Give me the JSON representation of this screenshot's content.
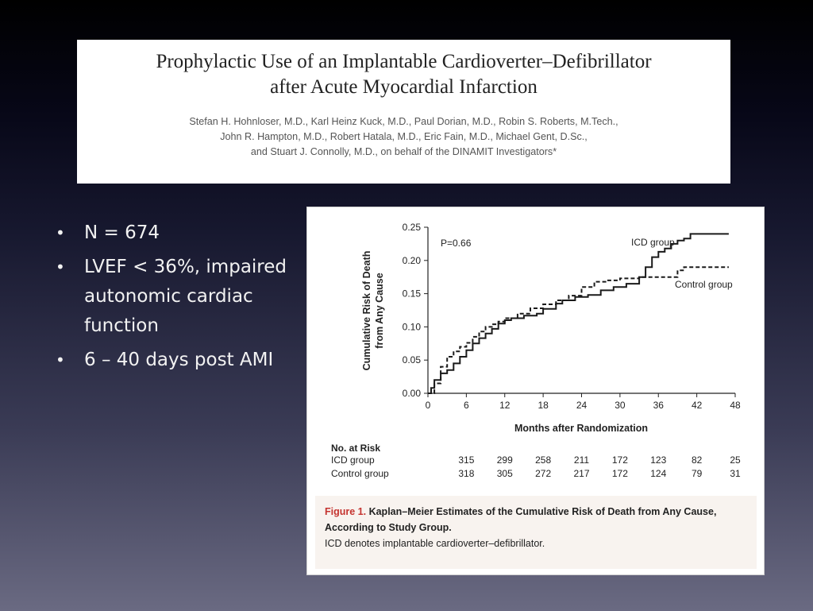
{
  "paper": {
    "title_line1": "Prophylactic Use of an Implantable Cardioverter–Defibrillator",
    "title_line2": "after Acute Myocardial Infarction",
    "authors_line1": "Stefan H. Hohnloser, M.D., Karl Heinz Kuck, M.D., Paul Dorian, M.D., Robin S. Roberts, M.Tech.,",
    "authors_line2": "John R. Hampton, M.D., Robert Hatala, M.D., Eric Fain, M.D., Michael Gent, D.Sc.,",
    "authors_line3": "and Stuart J. Connolly, M.D., on behalf of the DINAMIT Investigators*"
  },
  "bullets": {
    "symbol": "•",
    "items": [
      "N = 674",
      "LVEF < 36%, impaired autonomic cardiac function",
      "6 – 40 days post AMI"
    ]
  },
  "figure": {
    "p_value": "P=0.66",
    "risk_table": {
      "title": "No. at Risk",
      "rows": [
        {
          "label": "ICD group",
          "values": [
            "315",
            "299",
            "258",
            "211",
            "172",
            "123",
            "82",
            "25"
          ]
        },
        {
          "label": "Control group",
          "values": [
            "318",
            "305",
            "272",
            "217",
            "172",
            "124",
            "79",
            "31"
          ]
        }
      ]
    },
    "caption": {
      "label": "Figure 1.",
      "title": "Kaplan–Meier Estimates of the Cumulative Risk of Death from Any Cause, According to Study Group.",
      "note": "ICD denotes implantable cardioverter–defibrillator."
    }
  },
  "colors": {
    "accent": "#c4332f",
    "caption_bg": "#f8f3ef"
  },
  "chart_data": {
    "type": "line",
    "title": "",
    "xlabel": "Months after Randomization",
    "ylabel_line1": "Cumulative Risk of Death",
    "ylabel_line2": "from Any Cause",
    "xlim": [
      0,
      48
    ],
    "ylim": [
      0,
      0.25
    ],
    "xticks": [
      "0",
      "6",
      "12",
      "18",
      "24",
      "30",
      "36",
      "42",
      "48"
    ],
    "yticks": [
      "0.00",
      "0.05",
      "0.10",
      "0.15",
      "0.20",
      "0.25"
    ],
    "grid": false,
    "series": [
      {
        "name": "ICD group",
        "style": "solid",
        "points": [
          [
            0,
            0
          ],
          [
            0.5,
            0.008
          ],
          [
            1,
            0.02
          ],
          [
            2,
            0.03
          ],
          [
            3,
            0.035
          ],
          [
            4,
            0.045
          ],
          [
            5,
            0.055
          ],
          [
            6,
            0.065
          ],
          [
            7,
            0.075
          ],
          [
            8,
            0.083
          ],
          [
            9,
            0.09
          ],
          [
            10,
            0.097
          ],
          [
            11,
            0.105
          ],
          [
            12,
            0.11
          ],
          [
            13,
            0.113
          ],
          [
            15,
            0.117
          ],
          [
            17,
            0.12
          ],
          [
            18,
            0.127
          ],
          [
            20,
            0.135
          ],
          [
            21,
            0.14
          ],
          [
            23,
            0.145
          ],
          [
            25,
            0.148
          ],
          [
            27,
            0.155
          ],
          [
            29,
            0.16
          ],
          [
            31,
            0.165
          ],
          [
            33,
            0.175
          ],
          [
            34,
            0.19
          ],
          [
            35,
            0.205
          ],
          [
            36,
            0.213
          ],
          [
            37,
            0.218
          ],
          [
            38,
            0.225
          ],
          [
            39,
            0.23
          ],
          [
            40,
            0.233
          ],
          [
            41,
            0.24
          ],
          [
            43,
            0.24
          ],
          [
            47,
            0.24
          ]
        ]
      },
      {
        "name": "Control group",
        "style": "dashed",
        "points": [
          [
            0,
            0
          ],
          [
            1,
            0.015
          ],
          [
            2,
            0.04
          ],
          [
            3,
            0.055
          ],
          [
            4,
            0.063
          ],
          [
            5,
            0.07
          ],
          [
            6,
            0.076
          ],
          [
            7,
            0.085
          ],
          [
            8,
            0.093
          ],
          [
            9,
            0.1
          ],
          [
            10,
            0.104
          ],
          [
            11,
            0.108
          ],
          [
            12,
            0.113
          ],
          [
            14,
            0.12
          ],
          [
            16,
            0.128
          ],
          [
            18,
            0.134
          ],
          [
            20,
            0.14
          ],
          [
            22,
            0.147
          ],
          [
            24,
            0.16
          ],
          [
            26,
            0.168
          ],
          [
            28,
            0.17
          ],
          [
            30,
            0.173
          ],
          [
            33,
            0.175
          ],
          [
            38,
            0.175
          ],
          [
            39,
            0.185
          ],
          [
            40,
            0.19
          ],
          [
            47,
            0.19
          ]
        ]
      }
    ]
  }
}
